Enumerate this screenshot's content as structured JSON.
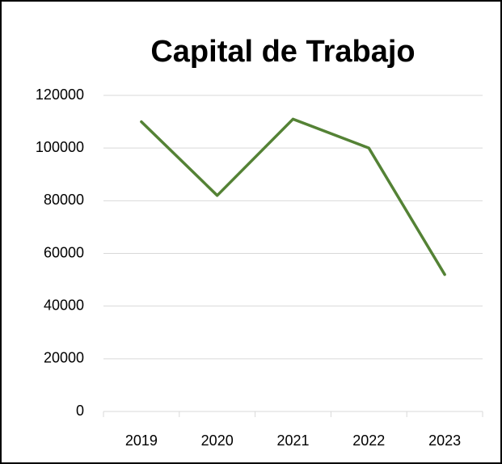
{
  "chart_data": {
    "type": "line",
    "title": "Capital de Trabajo",
    "categories": [
      "2019",
      "2020",
      "2021",
      "2022",
      "2023"
    ],
    "series": [
      {
        "name": "Capital de Trabajo",
        "color": "#548235",
        "values": [
          110000,
          82000,
          111000,
          100000,
          52000
        ]
      }
    ],
    "ylim": [
      0,
      120000
    ],
    "yticks": [
      0,
      20000,
      40000,
      60000,
      80000,
      100000,
      120000
    ],
    "grid": true
  }
}
